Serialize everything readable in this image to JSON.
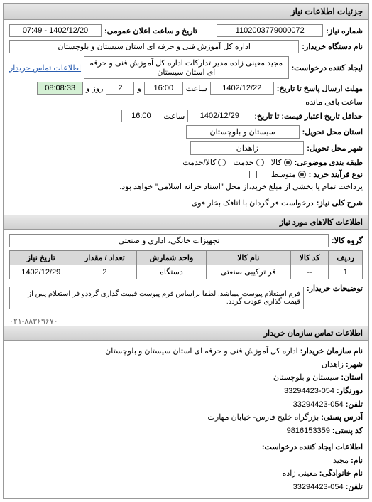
{
  "panel_title": "جزئیات اطلاعات نیاز",
  "fields": {
    "need_no_label": "شماره نیاز:",
    "need_no": "1102003779000072",
    "announce_label": "تاریخ و ساعت اعلان عمومی:",
    "announce_value": "1402/12/20 - 07:49",
    "buyer_org_label": "نام دستگاه خریدار:",
    "buyer_org": "اداره کل آموزش فنی و حرفه ای استان سیستان و بلوچستان",
    "creator_label": "ایجاد کننده درخواست:",
    "creator": "مجید معینی زاده مدیر تدارکات اداره کل آموزش فنی و حرفه ای استان سیستان",
    "buyer_contact_link": "اطلاعات تماس خریدار",
    "deadline_send_label": "مهلت ارسال پاسخ تا تاریخ:",
    "deadline_date": "1402/12/22",
    "time_label": "ساعت",
    "deadline_time": "16:00",
    "and_label": "و",
    "remain_days": "2",
    "day_label": "روز و",
    "remain_time": "08:08:33",
    "remain_suffix": "ساعت باقی مانده",
    "min_validity_label": "حداقل تاریخ اعتبار قیمت: تا تاریخ:",
    "min_validity_date": "1402/12/29",
    "min_validity_time": "16:00",
    "province_label": "استان محل تحویل:",
    "province": "سیستان و بلوچستان",
    "city_label": "شهر محل تحویل:",
    "city": "زاهدان",
    "category_label": "طبقه بندی موضوعی:",
    "cat_goods": "کالا",
    "cat_service": "خدمت",
    "cat_goods_service": "کالا/خدمت",
    "buy_type_label": "نوع فرآیند خرید :",
    "buy_medium": "متوسط",
    "payment_note_label": "پرداخت تمام یا بخشی از مبلغ خرید،از محل \"اسناد خزانه اسلامی\" خواهد بود.",
    "desc_label": "شرح کلی نیاز:",
    "desc_value": "درخواست فر گردان با اتاقک بخار قوی"
  },
  "goods_section": "اطلاعات کالاهای مورد نیاز",
  "goods_group_label": "گروه کالا:",
  "goods_group": "تجهیزات خانگی، اداری و صنعتی",
  "table": {
    "headers": [
      "ردیف",
      "کد کالا",
      "نام کالا",
      "واحد شمارش",
      "تعداد / مقدار",
      "تاریخ نیاز"
    ],
    "rows": [
      [
        "1",
        "--",
        "فر ترکیبی صنعتی",
        "دستگاه",
        "2",
        "1402/12/29"
      ]
    ]
  },
  "buyer_note_label": "توضیحات خریدار:",
  "buyer_note": "فرم استعلام پیوست میباشد. لطفا براساس فرم پیوست قیمت گذاری گرددو فر استعلام پس از قیمت گذاری عودت گردد.",
  "contact_title": "اطلاعات تماس سازمان خریدار",
  "contact": {
    "org_label": "نام سازمان خریدار:",
    "org": "اداره کل آموزش فنی و حرفه ای استان سیستان و بلوچستان",
    "city_label": "شهر:",
    "city": "زاهدان",
    "province_label": "استان:",
    "province": "سیستان و بلوچستان",
    "fax_label": "دورنگار:",
    "fax": "054-33294423",
    "phone_label": "تلفن:",
    "phone": "054-33294423",
    "address_label": "آدرس پستی:",
    "address": "بزرگراه خلیج فارس- خیابان مهارت",
    "postcode_label": "کد پستی:",
    "postcode": "9816153359",
    "req_creator_title": "اطلاعات ایجاد کننده درخواست:",
    "name_label": "نام:",
    "name": "مجید",
    "lname_label": "نام خانوادگی:",
    "lname": "معینی زاده",
    "tel_label": "تلفن:",
    "tel": "054-33294423"
  },
  "divider": "۰۲۱-۸۸۳۶۹۶۷۰"
}
